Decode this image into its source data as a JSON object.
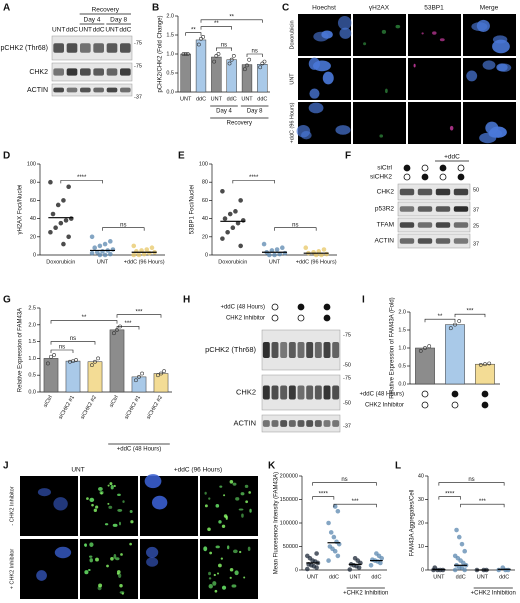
{
  "panel_letters": [
    "A",
    "B",
    "C",
    "D",
    "E",
    "F",
    "G",
    "H",
    "I",
    "J",
    "K",
    "L"
  ],
  "blot_A": {
    "header": "Recovery",
    "days": [
      "Day 4",
      "Day 8"
    ],
    "lanes": [
      "UNT",
      "ddC",
      "UNT",
      "ddC",
      "UNT",
      "ddC"
    ],
    "rows": [
      "pCHK2 (Thr68)",
      "CHK2",
      "ACTIN"
    ],
    "markers": [
      "-75",
      "-75",
      "-37"
    ]
  },
  "images_C": {
    "columns": [
      "Hoechst",
      "γH2AX",
      "53BP1",
      "Merge"
    ],
    "rows": [
      "Doxorubicin",
      "UNT",
      "+ddC (96 Hours)"
    ]
  },
  "blot_F": {
    "header": "+ddC",
    "conditions": [
      {
        "name": "siCtrl",
        "on": [
          true,
          false,
          true,
          false
        ]
      },
      {
        "name": "siCHK2",
        "on": [
          false,
          true,
          false,
          true
        ]
      }
    ],
    "rows": [
      "CHK2",
      "p53R2",
      "TFAM",
      "ACTIN"
    ],
    "markers": [
      "50",
      "37",
      "25",
      "37"
    ]
  },
  "blot_H": {
    "conditions": [
      {
        "name": "+ddC (48 Hours)",
        "on": [
          false,
          true,
          true
        ]
      },
      {
        "name": "CHK2 Inhibitor",
        "on": [
          false,
          false,
          true
        ]
      }
    ],
    "rows": [
      "pCHK2 (Thr68)",
      "CHK2",
      "ACTIN"
    ],
    "markers": [
      "-75",
      "-50",
      "-75",
      "-50",
      "-37"
    ]
  },
  "images_J": {
    "columns": [
      "UNT",
      "+ddC (96 Hours)"
    ],
    "rows": [
      "- CHK2 Inhibitor",
      "+ CHK2 Inhibitor"
    ]
  },
  "chart_data": [
    {
      "type": "bar",
      "ylabel": "pCHK2/CHK2 (Fold Change)",
      "categories": [
        "UNT",
        "ddC",
        "UNT",
        "ddC",
        "UNT",
        "ddC"
      ],
      "values": [
        1.0,
        1.37,
        0.92,
        0.85,
        0.72,
        0.73
      ],
      "points": [
        [
          1.0,
          1.0,
          1.0
        ],
        [
          1.25,
          1.4,
          1.45
        ],
        [
          0.8,
          0.95,
          1.0
        ],
        [
          0.75,
          0.85,
          0.95
        ],
        [
          0.6,
          0.7,
          0.85
        ],
        [
          0.65,
          0.75,
          0.8
        ]
      ],
      "colors": [
        "#8c8c8c",
        "#a9c9e8",
        "#8c8c8c",
        "#a9c9e8",
        "#8c8c8c",
        "#a9c9e8"
      ],
      "ylim": [
        0,
        2
      ],
      "yticks": [
        {
          "value": 0,
          "label": "0.0"
        },
        {
          "value": 0.5,
          "label": "0.5"
        },
        {
          "value": 1,
          "label": "1.0"
        },
        {
          "value": 1.5,
          "label": "1.5"
        },
        {
          "value": 2,
          "label": "2.0"
        }
      ],
      "groups": [
        "Day 4",
        "Day 8",
        "Recovery"
      ],
      "annotations": [
        "**",
        "**",
        "**",
        "ns",
        "ns"
      ]
    },
    {
      "type": "scatter",
      "ylabel": "γH2AX Foci/Nuclei",
      "categories": [
        "Doxorubicin",
        "UNT",
        "+ddC (96 Hours)"
      ],
      "values": [
        41,
        5,
        3
      ],
      "points": [
        [
          80,
          75,
          60,
          55,
          45,
          40,
          38,
          35,
          30,
          25,
          20,
          12
        ],
        [
          20,
          15,
          12,
          10,
          8,
          6,
          5,
          4,
          3,
          2,
          1,
          0,
          0
        ],
        [
          10,
          8,
          6,
          5,
          4,
          3,
          2,
          1,
          0,
          0
        ]
      ],
      "colors": [
        "#111111",
        "#5b88b0",
        "#e8c766"
      ],
      "ylim": [
        0,
        100
      ],
      "yticks": [
        0,
        20,
        40,
        60,
        80,
        100
      ],
      "annotations": [
        "****",
        "ns"
      ]
    },
    {
      "type": "scatter",
      "ylabel": "53BP1 Foci/Nuclei",
      "categories": [
        "Doxorubicin",
        "UNT",
        "+ddC (96 Hours)"
      ],
      "values": [
        37,
        3,
        2
      ],
      "points": [
        [
          70,
          60,
          48,
          45,
          40,
          38,
          35,
          30,
          25,
          18,
          10
        ],
        [
          12,
          8,
          6,
          5,
          3,
          2,
          1,
          0,
          0
        ],
        [
          8,
          6,
          4,
          3,
          2,
          1,
          0,
          0
        ]
      ],
      "colors": [
        "#111111",
        "#5b88b0",
        "#e8c766"
      ],
      "ylim": [
        0,
        100
      ],
      "yticks": [
        0,
        20,
        40,
        60,
        80,
        100
      ],
      "annotations": [
        "****",
        "ns"
      ]
    },
    {
      "type": "bar",
      "ylabel": "Relative Expression of FAM43A",
      "categories": [
        "siCtrl",
        "siCHK2 #1",
        "siCHK2 #2",
        "siCtrl",
        "siCHK2 #1",
        "siCHK2 #2"
      ],
      "values": [
        1.0,
        0.92,
        0.9,
        1.85,
        0.45,
        0.55
      ],
      "points": [
        [
          0.85,
          1.05,
          1.1
        ],
        [
          0.9,
          0.92,
          0.95
        ],
        [
          0.8,
          0.9,
          1.0
        ],
        [
          1.75,
          1.85,
          1.95
        ],
        [
          0.35,
          0.45,
          0.55
        ],
        [
          0.5,
          0.55,
          0.62
        ]
      ],
      "colors": [
        "#8c8c8c",
        "#a9c9e8",
        "#f3dc95",
        "#8c8c8c",
        "#a9c9e8",
        "#f3dc95"
      ],
      "ylim": [
        0,
        2.5
      ],
      "yticks": [
        {
          "value": 0,
          "label": "0.0"
        },
        {
          "value": 0.5,
          "label": "0.5"
        },
        {
          "value": 1,
          "label": "1.0"
        },
        {
          "value": 1.5,
          "label": "1.5"
        },
        {
          "value": 2,
          "label": "2.0"
        },
        {
          "value": 2.5,
          "label": "2.5"
        }
      ],
      "groups": [
        "+ddC (48 Hours)"
      ],
      "annotations": [
        "ns",
        "ns",
        "**",
        "***",
        "***"
      ]
    },
    {
      "type": "bar",
      "ylabel": "Relative Expression of FAM43A (Fold)",
      "categories": [
        null,
        null,
        null
      ],
      "values": [
        1.0,
        1.65,
        0.55
      ],
      "points": [
        [
          0.92,
          1.0,
          1.05
        ],
        [
          1.55,
          1.65,
          1.75
        ],
        [
          0.53,
          0.55,
          0.57
        ]
      ],
      "colors": [
        "#8c8c8c",
        "#a9c9e8",
        "#f3dc95"
      ],
      "ylim": [
        0,
        2
      ],
      "yticks": [
        {
          "value": 0,
          "label": "0.0"
        },
        {
          "value": 0.5,
          "label": "0.5"
        },
        {
          "value": 1,
          "label": "1.0"
        },
        {
          "value": 1.5,
          "label": "1.5"
        },
        {
          "value": 2,
          "label": "2.0"
        }
      ],
      "conditions": [
        {
          "name": "+ddC (48 Hours)",
          "on": [
            false,
            true,
            true
          ]
        },
        {
          "name": "CHK2 Inhibitor",
          "on": [
            false,
            false,
            true
          ]
        }
      ],
      "annotations": [
        "**",
        "***"
      ]
    },
    {
      "type": "scatter",
      "ylabel": "Mean Fluoresence Intensity (FAM43A)",
      "categories": [
        "UNT",
        "ddC",
        "UNT",
        "ddC"
      ],
      "values": [
        15000,
        58000,
        12000,
        20000
      ],
      "points": [
        [
          2000,
          5000,
          8000,
          10000,
          12000,
          15000,
          18000,
          20000,
          25000,
          30000,
          35000
        ],
        [
          20000,
          30000,
          40000,
          45000,
          50000,
          55000,
          60000,
          70000,
          80000,
          100000,
          125000,
          135000
        ],
        [
          1000,
          5000,
          8000,
          10000,
          12000,
          15000,
          20000,
          25000
        ],
        [
          10000,
          15000,
          18000,
          20000,
          22000,
          25000,
          30000,
          35000
        ]
      ],
      "colors": [
        "#1f2a3a",
        "#5b88b0",
        "#1f2a3a",
        "#5b88b0"
      ],
      "ylim": [
        0,
        200000
      ],
      "yticks": [
        0,
        50000,
        100000,
        150000,
        200000
      ],
      "groups": [
        "+CHK2 Inhibition"
      ],
      "annotations": [
        "****",
        "***",
        "ns"
      ]
    },
    {
      "type": "scatter",
      "ylabel": "FAM43A Aggregates/Cell",
      "categories": [
        "UNT",
        "ddC",
        "UNT",
        "ddC"
      ],
      "values": [
        0.2,
        2,
        0,
        0.3
      ],
      "points": [
        [
          0,
          0,
          0,
          0,
          1
        ],
        [
          0,
          0,
          1,
          1,
          2,
          2,
          3,
          4,
          5,
          6,
          8,
          11,
          14,
          17
        ],
        [
          0,
          0,
          0
        ],
        [
          0,
          0,
          0,
          1
        ]
      ],
      "colors": [
        "#1f2a3a",
        "#5b88b0",
        "#1f2a3a",
        "#5b88b0"
      ],
      "ylim": [
        0,
        40
      ],
      "yticks": [
        0,
        10,
        20,
        30,
        40
      ],
      "groups": [
        "+CHK2 Inhibition"
      ],
      "annotations": [
        "****",
        "***",
        "ns"
      ]
    }
  ]
}
